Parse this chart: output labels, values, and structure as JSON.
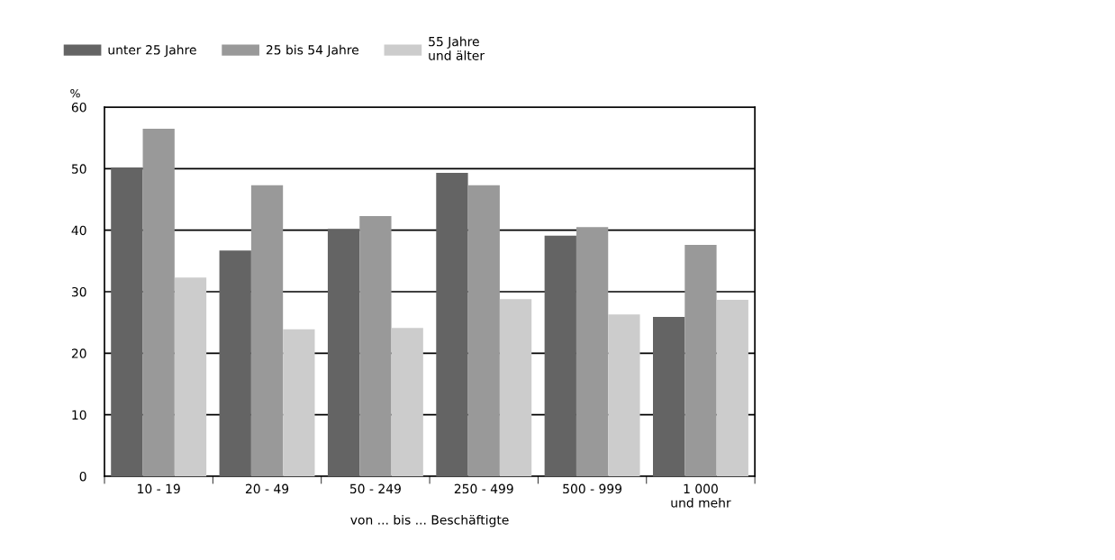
{
  "chart_data": {
    "type": "bar",
    "xlabel": "von ... bis ... Beschäftigte",
    "ylabel": "%",
    "categories": [
      "10 - 19",
      "20 - 49",
      "50 - 249",
      "250 - 499",
      "500 - 999",
      "1 000\nund mehr"
    ],
    "series": [
      {
        "name": "unter 25 Jahre",
        "color": "#646464",
        "values": [
          50.2,
          36.7,
          40.2,
          49.3,
          39.1,
          25.9
        ]
      },
      {
        "name": "25 bis 54 Jahre",
        "color": "#999999",
        "values": [
          56.5,
          47.3,
          42.3,
          47.3,
          40.5,
          37.6
        ]
      },
      {
        "name": "55 Jahre\nund älter",
        "color": "#cccccc",
        "values": [
          32.3,
          23.9,
          24.1,
          28.8,
          26.3,
          28.7
        ]
      }
    ],
    "ylim": [
      0,
      60
    ],
    "yticks": [
      0,
      10,
      20,
      30,
      40,
      50,
      60
    ],
    "grid": "y",
    "legend": "top"
  }
}
